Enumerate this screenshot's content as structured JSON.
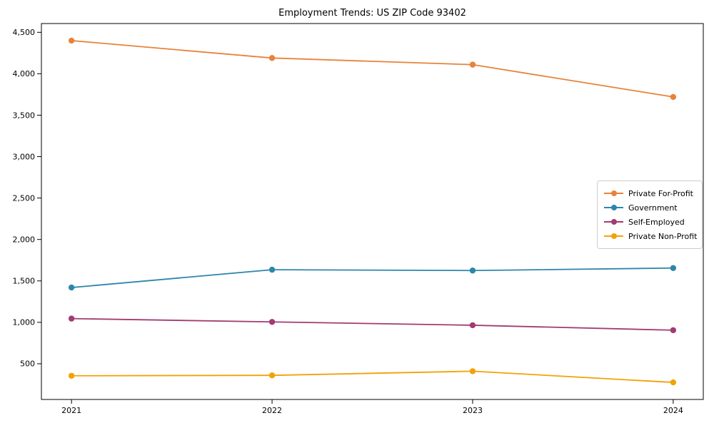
{
  "chart_data": {
    "type": "line",
    "title": "Employment Trends: US ZIP Code 93402",
    "x": [
      2021,
      2022,
      2023,
      2024
    ],
    "x_ticklabels": [
      "2021",
      "2022",
      "2023",
      "2024"
    ],
    "y_ticks": [
      500,
      1000,
      1500,
      2000,
      2500,
      3000,
      3500,
      4000,
      4500
    ],
    "y_ticklabels": [
      "500",
      "1,000",
      "1,500",
      "2,000",
      "2,500",
      "3,000",
      "3,500",
      "4,000",
      "4,500"
    ],
    "xlim": [
      2020.85,
      2024.15
    ],
    "ylim": [
      69,
      4606
    ],
    "grid": false,
    "legend_position": "center-right",
    "marker": "circle",
    "series": [
      {
        "name": "Private For-Profit",
        "color": "#E8833A",
        "values": [
          4400,
          4190,
          4110,
          3720
        ]
      },
      {
        "name": "Government",
        "color": "#2E86AB",
        "values": [
          1420,
          1635,
          1625,
          1655
        ]
      },
      {
        "name": "Self-Employed",
        "color": "#A23B72",
        "values": [
          1045,
          1005,
          965,
          905
        ]
      },
      {
        "name": "Private Non-Profit",
        "color": "#F1A208",
        "values": [
          355,
          360,
          410,
          275
        ]
      }
    ]
  }
}
